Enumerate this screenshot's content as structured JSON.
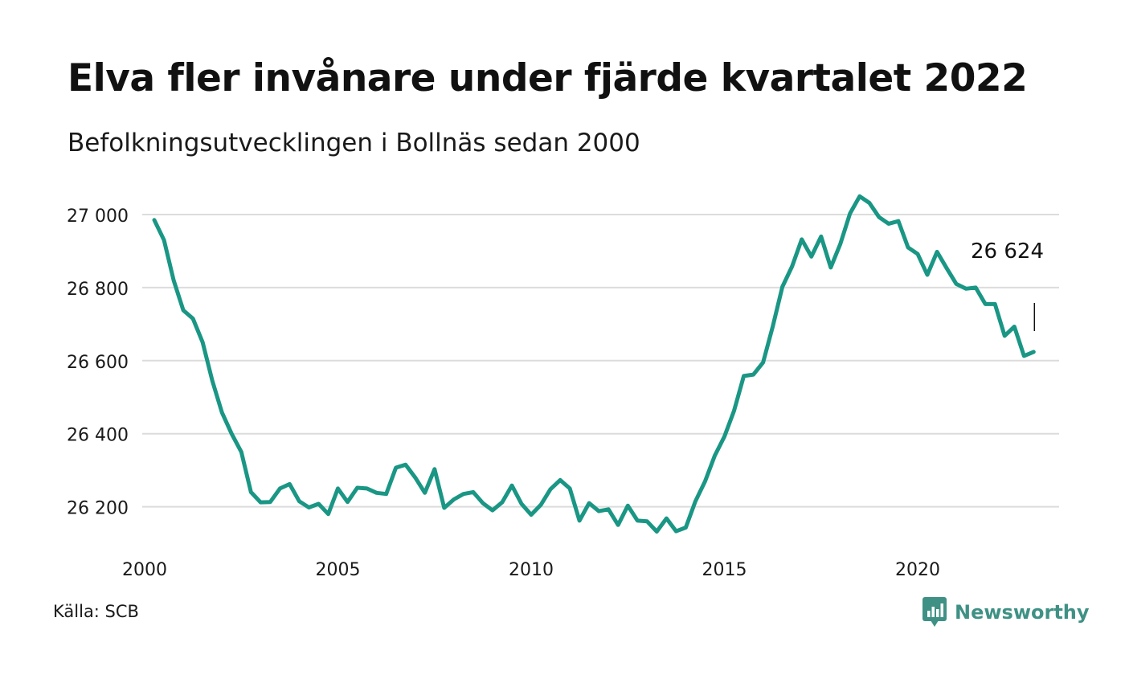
{
  "header": {
    "title": "Elva fler invånare under fjärde kvartalet 2022",
    "subtitle": "Befolkningsutvecklingen i Bollnäs sedan 2000"
  },
  "footer": {
    "source": "Källa: SCB",
    "brand": "Newsworthy",
    "brand_color": "#3e9184"
  },
  "chart_data": {
    "type": "line",
    "title": "Elva fler invånare under fjärde kvartalet 2022",
    "subtitle": "Befolkningsutvecklingen i Bollnäs sedan 2000",
    "xlabel": "",
    "ylabel": "",
    "xlim": [
      2000,
      2023.6
    ],
    "ylim": [
      26090,
      27070
    ],
    "grid": true,
    "line_color": "#1a9685",
    "x_ticks": [
      2000,
      2005,
      2010,
      2015,
      2020
    ],
    "x_tick_labels": [
      "2000",
      "2005",
      "2010",
      "2015",
      "2020"
    ],
    "y_ticks": [
      26200,
      26400,
      26600,
      26800,
      27000
    ],
    "y_tick_labels": [
      "26 200",
      "26 400",
      "26 600",
      "26 800",
      "27 000"
    ],
    "end_label": "26 624",
    "series": [
      {
        "name": "",
        "x": [
          2000.25,
          2000.5,
          2000.75,
          2001,
          2001.25,
          2001.5,
          2001.75,
          2002,
          2002.25,
          2002.5,
          2002.75,
          2003,
          2003.25,
          2003.5,
          2003.75,
          2004,
          2004.25,
          2004.5,
          2004.75,
          2005,
          2005.25,
          2005.5,
          2005.75,
          2006,
          2006.25,
          2006.5,
          2006.75,
          2007,
          2007.25,
          2007.5,
          2007.75,
          2008,
          2008.25,
          2008.5,
          2008.75,
          2009,
          2009.25,
          2009.5,
          2009.75,
          2010,
          2010.25,
          2010.5,
          2010.75,
          2011,
          2011.25,
          2011.5,
          2011.75,
          2012,
          2012.25,
          2012.5,
          2012.75,
          2013,
          2013.25,
          2013.5,
          2013.75,
          2014,
          2014.25,
          2014.5,
          2014.75,
          2015,
          2015.25,
          2015.5,
          2015.75,
          2016,
          2016.25,
          2016.5,
          2016.75,
          2017,
          2017.25,
          2017.5,
          2017.75,
          2018,
          2018.25,
          2018.5,
          2018.75,
          2019,
          2019.25,
          2019.5,
          2019.75,
          2020,
          2020.25,
          2020.5,
          2020.75,
          2021,
          2021.25,
          2021.5,
          2021.75,
          2022,
          2022.25,
          2022.5,
          2022.75,
          2023
        ],
        "y": [
          26985,
          26930,
          26820,
          26738,
          26715,
          26650,
          26545,
          26458,
          26400,
          26350,
          26240,
          26212,
          26213,
          26250,
          26262,
          26215,
          26198,
          26208,
          26180,
          26250,
          26213,
          26252,
          26250,
          26238,
          26235,
          26307,
          26315,
          26280,
          26238,
          26303,
          26197,
          26220,
          26235,
          26240,
          26210,
          26190,
          26212,
          26258,
          26208,
          26178,
          26205,
          26248,
          26273,
          26250,
          26162,
          26210,
          26188,
          26193,
          26150,
          26203,
          26162,
          26160,
          26132,
          26168,
          26133,
          26143,
          26215,
          26270,
          26340,
          26392,
          26463,
          26558,
          26562,
          26595,
          26693,
          26802,
          26858,
          26932,
          26885,
          26940,
          26855,
          26920,
          27003,
          27050,
          27032,
          26993,
          26975,
          26982,
          26910,
          26892,
          26835,
          26898,
          26853,
          26810,
          26797,
          26800,
          26755,
          26755,
          26668,
          26693,
          26613,
          26624
        ]
      }
    ]
  }
}
